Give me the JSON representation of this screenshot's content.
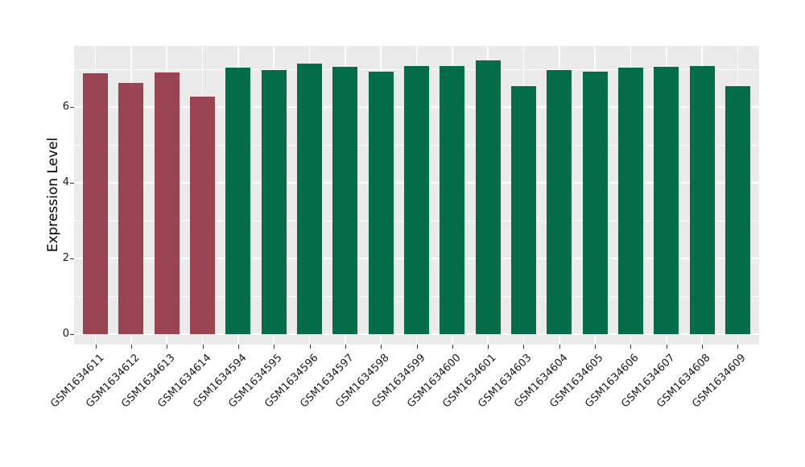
{
  "figure": {
    "background": "#FFFFFF"
  },
  "chart_data": {
    "type": "bar",
    "title": "",
    "xlabel": "",
    "ylabel": "Expression Level",
    "categories": [
      "GSM1634611",
      "GSM1634612",
      "GSM1634613",
      "GSM1634614",
      "GSM1634594",
      "GSM1634595",
      "GSM1634596",
      "GSM1634597",
      "GSM1634598",
      "GSM1634599",
      "GSM1634600",
      "GSM1634601",
      "GSM1634603",
      "GSM1634604",
      "GSM1634605",
      "GSM1634606",
      "GSM1634607",
      "GSM1634608",
      "GSM1634609"
    ],
    "values": [
      6.9,
      6.64,
      6.92,
      6.28,
      7.05,
      6.99,
      7.16,
      7.07,
      6.94,
      7.09,
      7.09,
      7.25,
      6.56,
      6.98,
      6.95,
      7.06,
      7.07,
      7.09,
      6.55
    ],
    "bar_groups": [
      "a",
      "a",
      "a",
      "a",
      "b",
      "b",
      "b",
      "b",
      "b",
      "b",
      "b",
      "b",
      "b",
      "b",
      "b",
      "b",
      "b",
      "b",
      "b"
    ],
    "palette": {
      "a": "#9A4352",
      "b": "#056C49"
    },
    "yticks": [
      0,
      2,
      4,
      6
    ],
    "minor_yticks": [
      1,
      3,
      5,
      7
    ],
    "ylim": [
      0,
      7.63
    ],
    "grid": true,
    "legend": "none",
    "panel_background": "#EBEBEB",
    "grid_color": "#FFFFFF",
    "axis_text_color": "#1A1A1A"
  }
}
